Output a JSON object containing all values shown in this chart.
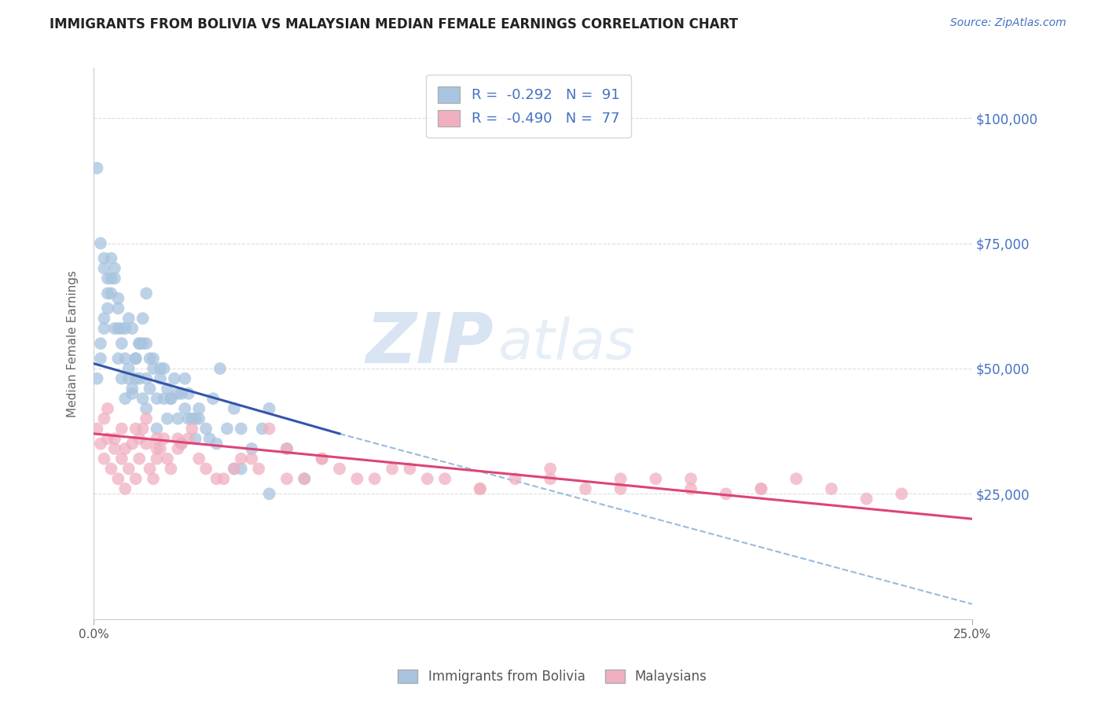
{
  "title": "IMMIGRANTS FROM BOLIVIA VS MALAYSIAN MEDIAN FEMALE EARNINGS CORRELATION CHART",
  "source_text": "Source: ZipAtlas.com",
  "ylabel": "Median Female Earnings",
  "xlim": [
    0.0,
    0.25
  ],
  "ylim": [
    0,
    110000
  ],
  "yticks": [
    0,
    25000,
    50000,
    75000,
    100000
  ],
  "ytick_labels": [
    "",
    "$25,000",
    "$50,000",
    "$75,000",
    "$100,000"
  ],
  "legend_r1": "R = -0.292",
  "legend_n1": "N = 91",
  "legend_r2": "R = -0.490",
  "legend_n2": "N = 77",
  "color_blue": "#a8c4e0",
  "color_pink": "#f0b0c0",
  "line_blue": "#3355aa",
  "line_pink": "#dd4477",
  "line_dashed_color": "#99bbdd",
  "text_blue": "#4472c4",
  "background_color": "#ffffff",
  "grid_color": "#dddddd",
  "title_color": "#222222",
  "source_color": "#4472c4",
  "bolivia_scatter_x": [
    0.001,
    0.002,
    0.003,
    0.004,
    0.005,
    0.006,
    0.007,
    0.008,
    0.009,
    0.01,
    0.011,
    0.012,
    0.013,
    0.014,
    0.015,
    0.001,
    0.002,
    0.003,
    0.004,
    0.005,
    0.006,
    0.007,
    0.008,
    0.009,
    0.01,
    0.011,
    0.012,
    0.013,
    0.014,
    0.015,
    0.016,
    0.017,
    0.018,
    0.019,
    0.02,
    0.021,
    0.022,
    0.023,
    0.024,
    0.025,
    0.026,
    0.027,
    0.028,
    0.029,
    0.03,
    0.032,
    0.034,
    0.036,
    0.038,
    0.04,
    0.042,
    0.045,
    0.048,
    0.05,
    0.055,
    0.06,
    0.003,
    0.005,
    0.007,
    0.009,
    0.012,
    0.015,
    0.018,
    0.022,
    0.026,
    0.03,
    0.004,
    0.008,
    0.013,
    0.017,
    0.002,
    0.006,
    0.01,
    0.015,
    0.02,
    0.025,
    0.003,
    0.007,
    0.011,
    0.016,
    0.021,
    0.027,
    0.033,
    0.04,
    0.014,
    0.019,
    0.024,
    0.029,
    0.035,
    0.042,
    0.05
  ],
  "bolivia_scatter_y": [
    90000,
    55000,
    60000,
    68000,
    72000,
    70000,
    62000,
    55000,
    58000,
    48000,
    45000,
    52000,
    55000,
    60000,
    65000,
    48000,
    52000,
    58000,
    62000,
    68000,
    58000,
    52000,
    48000,
    44000,
    50000,
    46000,
    52000,
    48000,
    44000,
    48000,
    46000,
    52000,
    44000,
    48000,
    44000,
    40000,
    44000,
    48000,
    40000,
    35000,
    42000,
    45000,
    40000,
    36000,
    42000,
    38000,
    44000,
    50000,
    38000,
    42000,
    38000,
    34000,
    38000,
    42000,
    34000,
    28000,
    72000,
    65000,
    58000,
    52000,
    48000,
    42000,
    38000,
    44000,
    48000,
    40000,
    65000,
    58000,
    55000,
    50000,
    75000,
    68000,
    60000,
    55000,
    50000,
    45000,
    70000,
    64000,
    58000,
    52000,
    46000,
    40000,
    36000,
    30000,
    55000,
    50000,
    45000,
    40000,
    35000,
    30000,
    25000
  ],
  "malaysian_scatter_x": [
    0.001,
    0.002,
    0.003,
    0.004,
    0.005,
    0.006,
    0.007,
    0.008,
    0.009,
    0.01,
    0.011,
    0.012,
    0.013,
    0.014,
    0.015,
    0.016,
    0.017,
    0.018,
    0.019,
    0.02,
    0.022,
    0.025,
    0.028,
    0.03,
    0.035,
    0.04,
    0.045,
    0.05,
    0.055,
    0.06,
    0.065,
    0.07,
    0.08,
    0.09,
    0.1,
    0.11,
    0.12,
    0.13,
    0.14,
    0.15,
    0.16,
    0.17,
    0.18,
    0.19,
    0.2,
    0.21,
    0.22,
    0.23,
    0.003,
    0.006,
    0.009,
    0.012,
    0.015,
    0.018,
    0.021,
    0.024,
    0.027,
    0.032,
    0.037,
    0.042,
    0.047,
    0.055,
    0.065,
    0.075,
    0.085,
    0.095,
    0.11,
    0.13,
    0.15,
    0.17,
    0.19,
    0.004,
    0.008,
    0.013,
    0.018,
    0.024
  ],
  "malaysian_scatter_y": [
    38000,
    35000,
    32000,
    36000,
    30000,
    34000,
    28000,
    32000,
    26000,
    30000,
    35000,
    28000,
    32000,
    38000,
    35000,
    30000,
    28000,
    32000,
    34000,
    36000,
    30000,
    35000,
    38000,
    32000,
    28000,
    30000,
    32000,
    38000,
    34000,
    28000,
    32000,
    30000,
    28000,
    30000,
    28000,
    26000,
    28000,
    30000,
    26000,
    28000,
    28000,
    26000,
    25000,
    26000,
    28000,
    26000,
    24000,
    25000,
    40000,
    36000,
    34000,
    38000,
    40000,
    36000,
    32000,
    34000,
    36000,
    30000,
    28000,
    32000,
    30000,
    28000,
    32000,
    28000,
    30000,
    28000,
    26000,
    28000,
    26000,
    28000,
    26000,
    42000,
    38000,
    36000,
    34000,
    36000
  ],
  "bolivia_line_x0": 0.0,
  "bolivia_line_y0": 51000,
  "bolivia_line_x1": 0.07,
  "bolivia_line_y1": 37000,
  "malaysian_line_x0": 0.0,
  "malaysian_line_y0": 37000,
  "malaysian_line_x1": 0.25,
  "malaysian_line_y1": 20000,
  "dashed_line_x0": 0.07,
  "dashed_line_y0": 37000,
  "dashed_line_x1": 0.25,
  "dashed_line_y1": 3000
}
